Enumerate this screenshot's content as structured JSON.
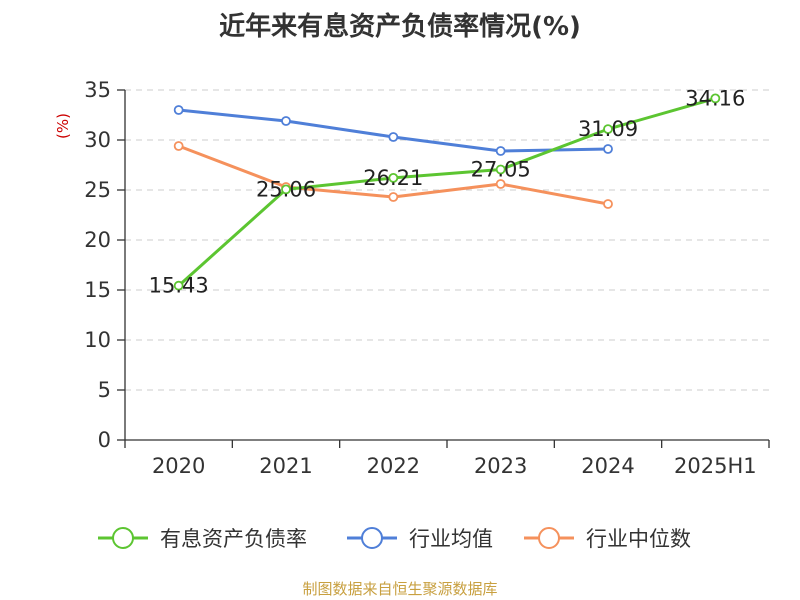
{
  "chart_data": {
    "type": "line",
    "title": "近年来有息资产负债率情况(%)",
    "ylabel": "(%)",
    "categories": [
      "2020",
      "2021",
      "2022",
      "2023",
      "2024",
      "2025H1"
    ],
    "ylim": [
      0,
      35
    ],
    "yticks": [
      0,
      5,
      10,
      15,
      20,
      25,
      30,
      35
    ],
    "grid": true,
    "legend_position": "bottom",
    "series": [
      {
        "name": "有息资产负债率",
        "color": "#5cc531",
        "values": [
          15.43,
          25.06,
          26.21,
          27.05,
          31.09,
          34.16
        ],
        "labels": [
          "15.43",
          "25.06",
          "26.21",
          "27.05",
          "31.09",
          "34.16"
        ]
      },
      {
        "name": "行业均值",
        "color": "#4f7fd8",
        "values": [
          33.0,
          31.9,
          30.3,
          28.9,
          29.1,
          null
        ]
      },
      {
        "name": "行业中位数",
        "color": "#f5915c",
        "values": [
          29.4,
          25.3,
          24.3,
          25.6,
          23.6,
          null
        ]
      }
    ]
  },
  "source": "制图数据来自恒生聚源数据库"
}
